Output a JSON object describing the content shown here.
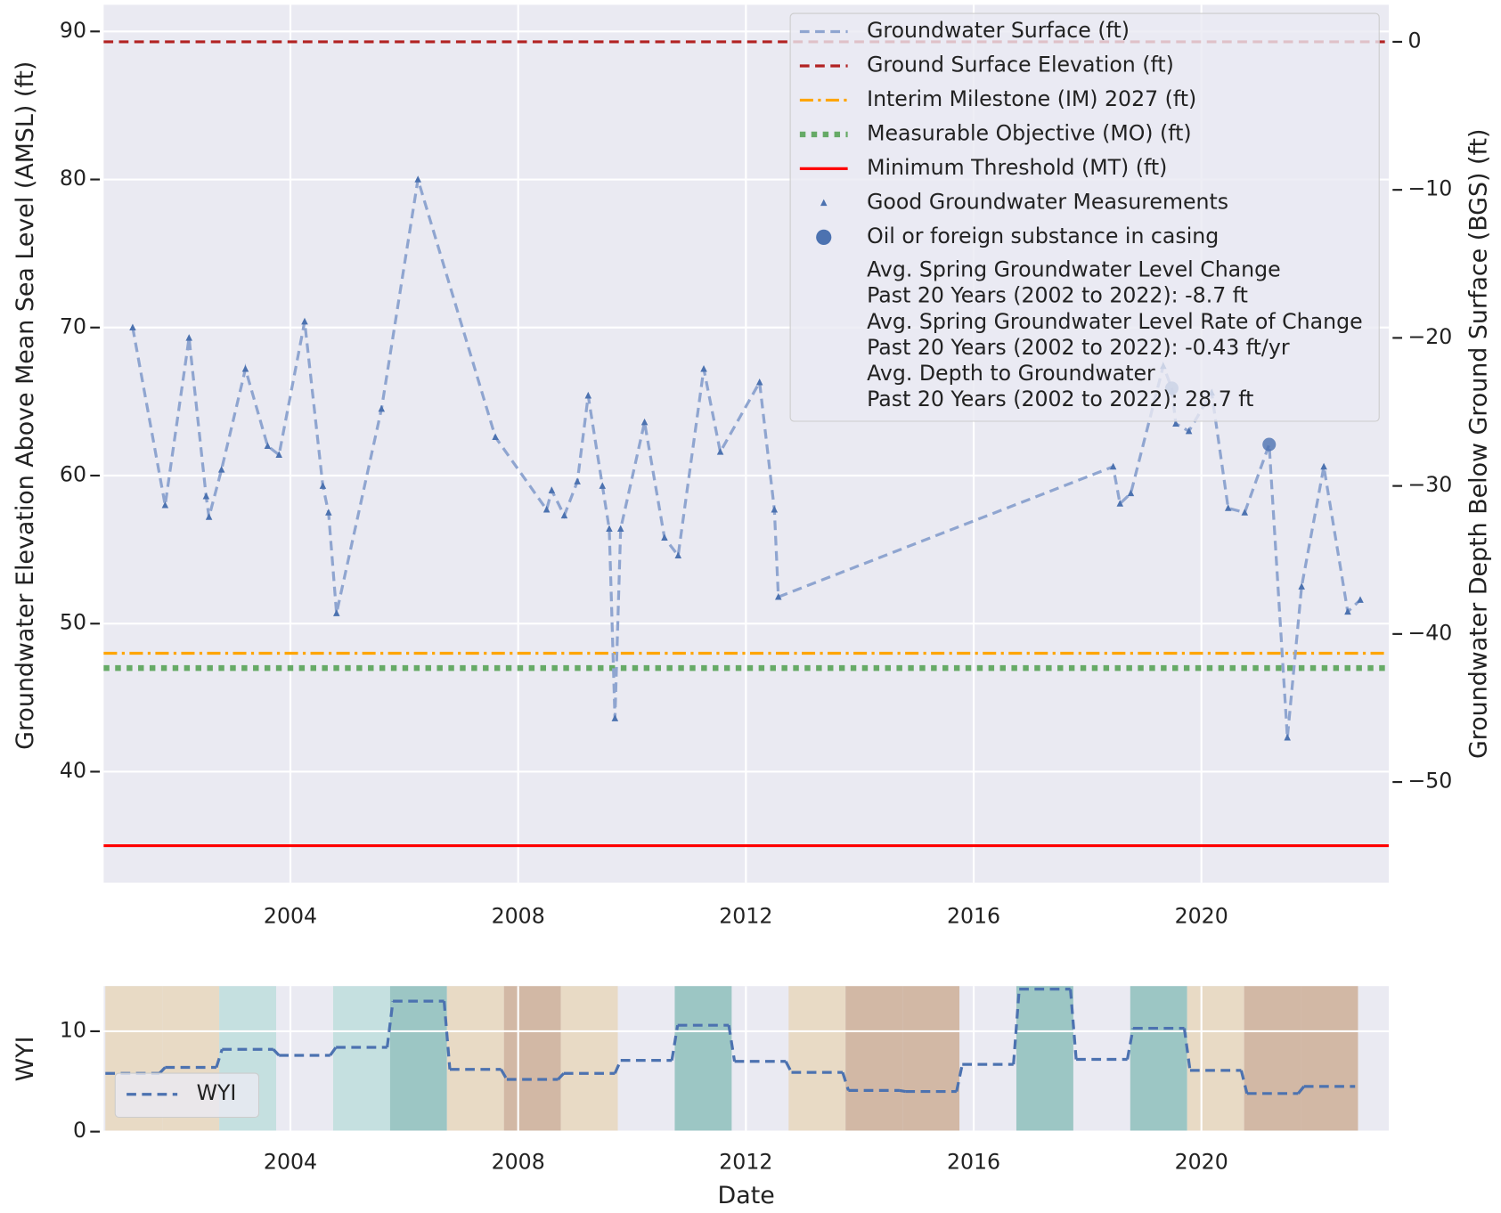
{
  "chart_data": [
    {
      "type": "line",
      "xlim": [
        2000.72,
        2023.29
      ],
      "xticks": [
        2004,
        2008,
        2012,
        2016,
        2020
      ],
      "ylim": [
        32.5,
        91.8
      ],
      "yticks": [
        40,
        50,
        60,
        70,
        80,
        90
      ],
      "y2lim": [
        -56.8,
        2.5
      ],
      "y2ticks": [
        {
          "value": 0,
          "label": "0"
        },
        {
          "value": -10,
          "label": "−10"
        },
        {
          "value": -20,
          "label": "−20"
        },
        {
          "value": -30,
          "label": "−30"
        },
        {
          "value": -40,
          "label": "−40"
        },
        {
          "value": -50,
          "label": "−50"
        }
      ],
      "ylabel": "Groundwater Elevation Above Mean Sea Level (AMSL) (ft)",
      "y2label": "Groundwater Depth Below Ground Surface (BGS) (ft)",
      "grid": true,
      "series": [
        {
          "name": "Groundwater Surface (ft)",
          "type": "line",
          "style": "dashed",
          "color": "#8fa5d0",
          "x": [
            2001.23,
            2001.8,
            2002.22,
            2002.52,
            2002.57,
            2002.79,
            2003.21,
            2003.6,
            2003.8,
            2004.25,
            2004.57,
            2004.67,
            2004.81,
            2005.6,
            2006.24,
            2007.6,
            2008.5,
            2008.59,
            2008.81,
            2009.04,
            2009.23,
            2009.48,
            2009.6,
            2009.7,
            2009.8,
            2010.22,
            2010.57,
            2010.81,
            2011.26,
            2011.55,
            2012.24,
            2012.5,
            2012.57,
            2018.45,
            2018.57,
            2018.76,
            2019.33,
            2019.48,
            2019.55,
            2019.78,
            2020.18,
            2020.47,
            2020.76,
            2021.19,
            2021.51,
            2021.76,
            2022.15,
            2022.57,
            2022.79
          ],
          "values": [
            70.0,
            58.0,
            69.3,
            58.6,
            57.2,
            60.4,
            67.2,
            62.0,
            61.4,
            70.4,
            59.3,
            57.5,
            50.7,
            64.5,
            80.0,
            62.6,
            57.7,
            59.0,
            57.3,
            59.6,
            65.4,
            59.3,
            56.4,
            43.6,
            56.4,
            63.6,
            55.8,
            54.6,
            67.2,
            61.6,
            66.3,
            57.7,
            51.8,
            60.6,
            58.1,
            58.8,
            67.4,
            65.9,
            63.5,
            63.0,
            65.6,
            57.8,
            57.5,
            62.1,
            42.3,
            52.5,
            60.6,
            50.8,
            51.6
          ]
        },
        {
          "name": "Good Groundwater Measurements",
          "type": "scatter",
          "marker": "triangle",
          "color": "#4c72b0",
          "x": [
            2001.23,
            2001.8,
            2002.22,
            2002.52,
            2002.57,
            2002.79,
            2003.21,
            2003.6,
            2003.8,
            2004.25,
            2004.57,
            2004.67,
            2004.81,
            2005.6,
            2006.24,
            2007.6,
            2008.5,
            2008.59,
            2008.81,
            2009.04,
            2009.23,
            2009.48,
            2009.6,
            2009.7,
            2009.8,
            2010.22,
            2010.57,
            2010.81,
            2011.26,
            2011.55,
            2012.24,
            2012.5,
            2012.57,
            2018.45,
            2018.57,
            2018.76,
            2019.33,
            2019.55,
            2019.78,
            2020.18,
            2020.47,
            2020.76,
            2021.51,
            2021.76,
            2022.15,
            2022.57,
            2022.79
          ],
          "values": [
            70.0,
            58.0,
            69.3,
            58.6,
            57.2,
            60.4,
            67.2,
            62.0,
            61.4,
            70.4,
            59.3,
            57.5,
            50.7,
            64.5,
            80.0,
            62.6,
            57.7,
            59.0,
            57.3,
            59.6,
            65.4,
            59.3,
            56.4,
            43.6,
            56.4,
            63.6,
            55.8,
            54.6,
            67.2,
            61.6,
            66.3,
            57.7,
            51.8,
            60.6,
            58.1,
            58.8,
            67.4,
            63.5,
            63.0,
            65.6,
            57.8,
            57.5,
            42.3,
            52.5,
            60.6,
            50.8,
            51.6
          ]
        },
        {
          "name": "Oil or foreign substance in casing",
          "type": "scatter",
          "marker": "circle",
          "color": "#4c72b0",
          "x": [
            2019.48,
            2021.19
          ],
          "values": [
            65.9,
            62.1
          ]
        }
      ],
      "reference_lines": [
        {
          "name": "Ground Surface Elevation (ft)",
          "value": 89.3,
          "color": "#b22222",
          "style": "dashed"
        },
        {
          "name": "Interim Milestone (IM) 2027 (ft)",
          "value": 48,
          "color": "#ffa500",
          "style": "dashdot"
        },
        {
          "name": "Measurable Objective (MO) (ft)",
          "value": 47,
          "color": "#66aa66",
          "style": "dotted"
        },
        {
          "name": "Minimum Threshold (MT) (ft)",
          "value": 35,
          "color": "#ff0000",
          "style": "solid"
        }
      ],
      "annotations": [
        "Avg. Spring Groundwater Level Change",
        "Past 20 Years (2002 to 2022): -8.7 ft",
        "Avg. Spring Groundwater Level Rate of Change",
        "Past 20 Years (2002 to 2022): -0.43 ft/yr",
        "Avg. Depth to Groundwater",
        "Past 20 Years (2002 to 2022): 28.7 ft"
      ]
    },
    {
      "type": "step",
      "xlim": [
        2000.72,
        2023.29
      ],
      "xticks": [
        2004,
        2008,
        2012,
        2016,
        2020
      ],
      "ylim": [
        0,
        14.5
      ],
      "yticks": [
        0,
        10
      ],
      "xlabel": "Date",
      "ylabel": "WYI",
      "grid": true,
      "series": [
        {
          "name": "WYI",
          "style": "dashed",
          "color": "#4c72b0",
          "bins": [
            2000.75,
            2001.75,
            2002.75,
            2003.75,
            2004.75,
            2005.75,
            2006.75,
            2007.75,
            2008.75,
            2009.75,
            2010.75,
            2011.75,
            2012.75,
            2013.75,
            2014.75,
            2015.75,
            2016.75,
            2017.75,
            2018.75,
            2019.75,
            2020.75,
            2021.75,
            2022.75
          ],
          "values": [
            5.8,
            6.4,
            8.2,
            7.6,
            8.4,
            13.0,
            6.2,
            5.2,
            5.8,
            7.1,
            10.6,
            7.0,
            5.9,
            4.1,
            4.0,
            6.7,
            14.2,
            7.2,
            10.3,
            6.1,
            3.8,
            4.5
          ],
          "band_colors": [
            "#e8dac5",
            "#e8dac5",
            "#c5e0e0",
            null,
            "#c5e0e0",
            "#9cc6c4",
            "#e8dac5",
            "#d2b8a5",
            "#e8dac5",
            null,
            "#9cc6c4",
            null,
            "#e8dac5",
            "#d2b8a5",
            "#d2b8a5",
            null,
            "#9cc6c4",
            null,
            "#9cc6c4",
            "#e8dac5",
            "#d2b8a5",
            "#d2b8a5"
          ]
        }
      ]
    }
  ]
}
